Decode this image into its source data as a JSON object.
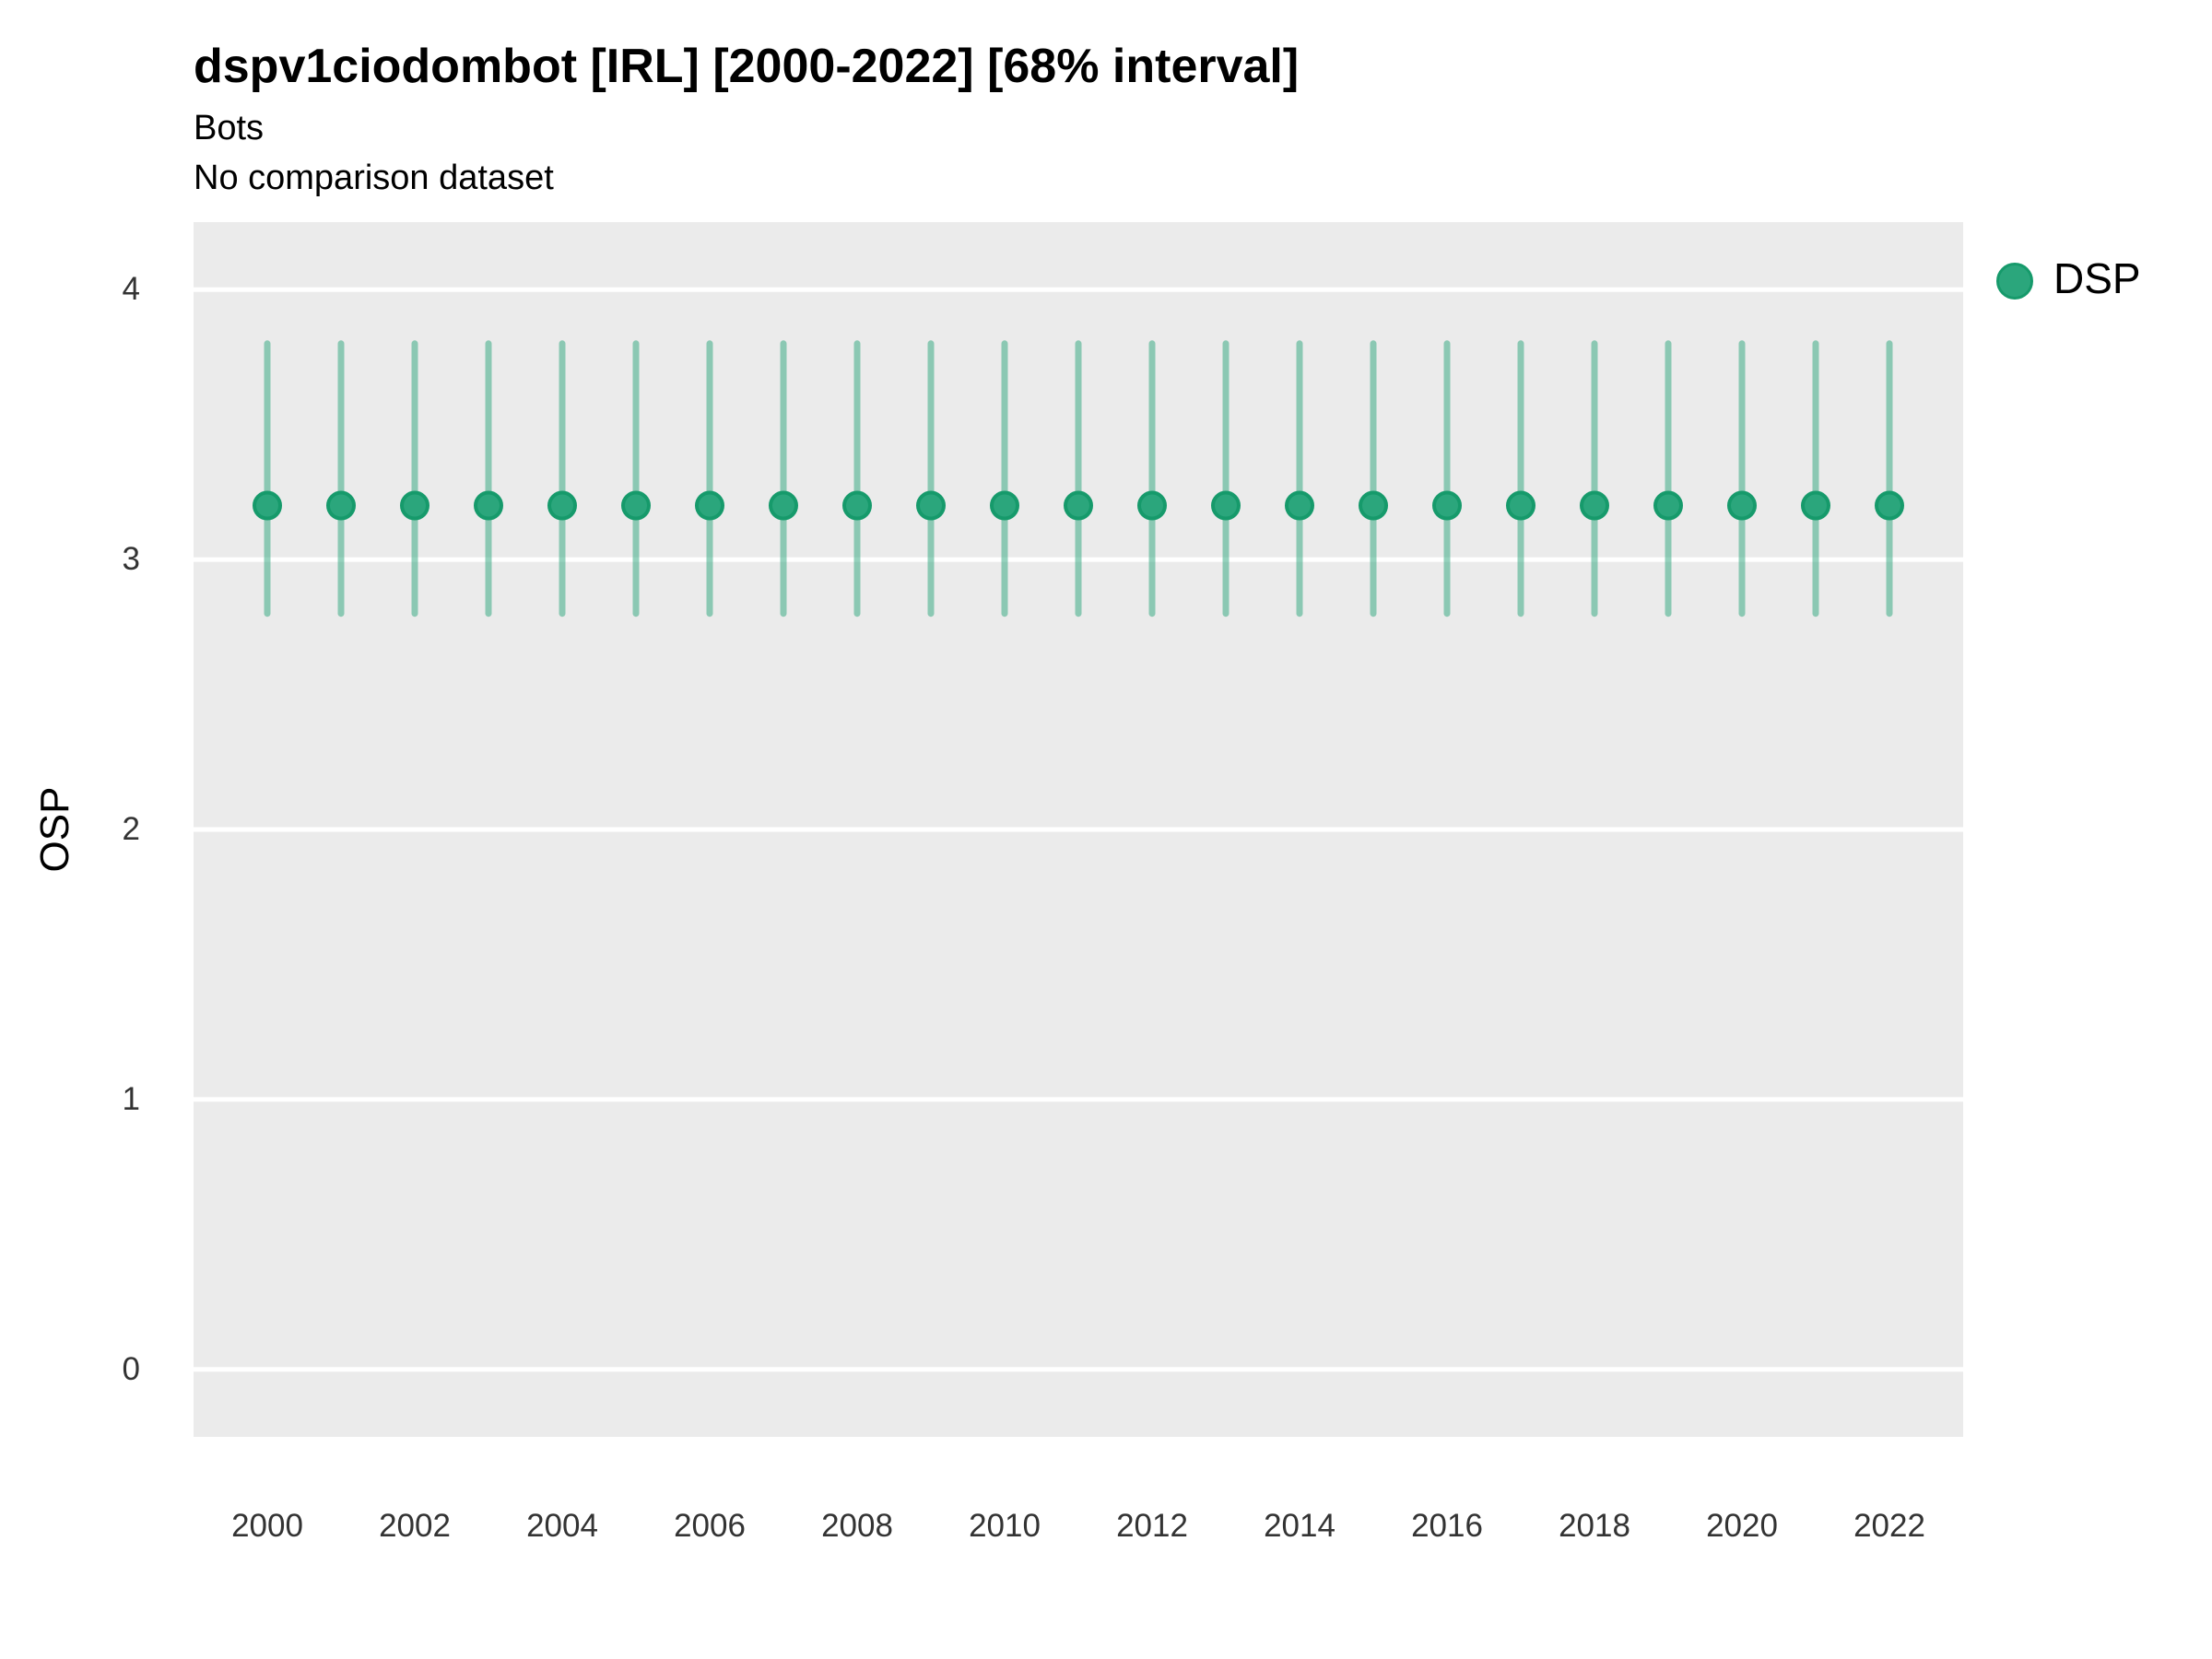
{
  "header": {
    "title": "dspv1ciodombot [IRL] [2000-2022] [68% interval]",
    "subtitle": "Bots",
    "note": "No comparison dataset"
  },
  "legend": {
    "position": "right",
    "entries": [
      {
        "label": "DSP",
        "marker": "circle"
      }
    ]
  },
  "colors": {
    "point_fill": "#2BA67C",
    "point_stroke": "#169A6B",
    "interval_line": "rgba(43,166,124,0.5)",
    "panel_background": "#EBEBEB",
    "gridline": "#FFFFFF",
    "tick_text": "#333333",
    "title_text": "#000000"
  },
  "chart_data": {
    "type": "scatter",
    "title": "dspv1ciodombot [IRL] [2000-2022] [68% interval]",
    "subtitle": "Bots",
    "note": "No comparison dataset",
    "xlabel": "",
    "ylabel": "OSP",
    "xlim": [
      1999,
      2023
    ],
    "ylim": [
      -0.25,
      4.25
    ],
    "x_ticks": [
      2000,
      2002,
      2004,
      2006,
      2008,
      2010,
      2012,
      2014,
      2016,
      2018,
      2020,
      2022
    ],
    "y_ticks": [
      0,
      1,
      2,
      3,
      4
    ],
    "grid": "major-horizontal-only",
    "legend_position": "right",
    "series": [
      {
        "name": "DSP",
        "marker": "circle-with-vertical-interval",
        "interval_label": "68% interval",
        "x": [
          2000,
          2001,
          2002,
          2003,
          2004,
          2005,
          2006,
          2007,
          2008,
          2009,
          2010,
          2011,
          2012,
          2013,
          2014,
          2015,
          2016,
          2017,
          2018,
          2019,
          2020,
          2021,
          2022
        ],
        "y": [
          3.2,
          3.2,
          3.2,
          3.2,
          3.2,
          3.2,
          3.2,
          3.2,
          3.2,
          3.2,
          3.2,
          3.2,
          3.2,
          3.2,
          3.2,
          3.2,
          3.2,
          3.2,
          3.2,
          3.2,
          3.2,
          3.2,
          3.2
        ],
        "ymin": [
          2.8,
          2.8,
          2.8,
          2.8,
          2.8,
          2.8,
          2.8,
          2.8,
          2.8,
          2.8,
          2.8,
          2.8,
          2.8,
          2.8,
          2.8,
          2.8,
          2.8,
          2.8,
          2.8,
          2.8,
          2.8,
          2.8,
          2.8
        ],
        "ymax": [
          3.8,
          3.8,
          3.8,
          3.8,
          3.8,
          3.8,
          3.8,
          3.8,
          3.8,
          3.8,
          3.8,
          3.8,
          3.8,
          3.8,
          3.8,
          3.8,
          3.8,
          3.8,
          3.8,
          3.8,
          3.8,
          3.8,
          3.8
        ]
      }
    ]
  }
}
